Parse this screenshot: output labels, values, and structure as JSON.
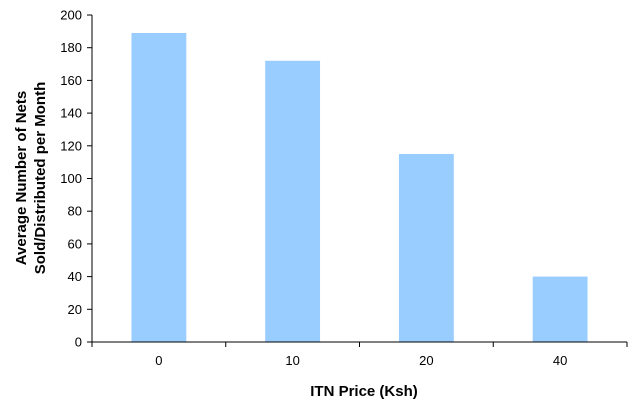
{
  "chart_data": {
    "type": "bar",
    "title": "",
    "xlabel": "ITN Price (Ksh)",
    "ylabel_lines": [
      "Average Number of Nets",
      "Sold/Distributed per Month"
    ],
    "categories": [
      "0",
      "10",
      "20",
      "40"
    ],
    "values": [
      189,
      172,
      115,
      40
    ],
    "ylim": [
      0,
      200
    ],
    "yticks": [
      0,
      20,
      40,
      60,
      80,
      100,
      120,
      140,
      160,
      180,
      200
    ],
    "grid": false,
    "legend": "none",
    "bar_color": "#99ccff"
  }
}
